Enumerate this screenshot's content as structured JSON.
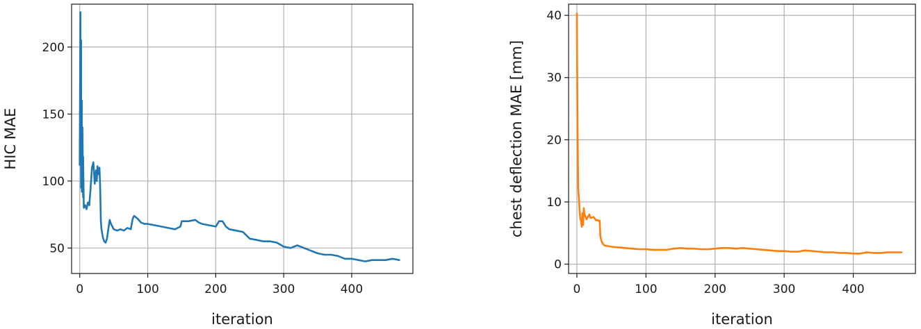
{
  "chart_data": [
    {
      "type": "line",
      "xlabel": "iteration",
      "ylabel": "HIC MAE",
      "xlim": [
        -12,
        490
      ],
      "ylim": [
        31,
        232
      ],
      "xticks": [
        0,
        100,
        200,
        300,
        400
      ],
      "yticks": [
        50,
        100,
        150,
        200
      ],
      "grid": true,
      "color": "#1f77b4",
      "series": [
        {
          "x": [
            0,
            1,
            1,
            2,
            2,
            3,
            3,
            4,
            5,
            5,
            6,
            8,
            10,
            12,
            14,
            16,
            18,
            20,
            22,
            24,
            25,
            26,
            28,
            29,
            30,
            31,
            32,
            34,
            36,
            38,
            40,
            42,
            44,
            46,
            48,
            50,
            55,
            60,
            65,
            70,
            75,
            78,
            80,
            85,
            90,
            95,
            100,
            110,
            120,
            130,
            140,
            148,
            150,
            160,
            170,
            175,
            180,
            190,
            200,
            205,
            210,
            215,
            220,
            230,
            240,
            250,
            260,
            270,
            280,
            290,
            300,
            310,
            320,
            330,
            340,
            350,
            360,
            370,
            380,
            390,
            400,
            410,
            420,
            430,
            440,
            450,
            460,
            470
          ],
          "y": [
            112,
            226,
            120,
            205,
            95,
            160,
            92,
            140,
            88,
            118,
            80,
            82,
            79,
            84,
            82,
            95,
            110,
            114,
            98,
            108,
            100,
            111,
            105,
            110,
            95,
            70,
            64,
            58,
            55,
            54,
            57,
            64,
            71,
            68,
            66,
            64,
            63,
            64,
            63,
            65,
            64,
            72,
            74,
            72,
            69,
            68,
            68,
            67,
            66,
            65,
            64,
            66,
            70,
            70,
            71,
            69,
            68,
            67,
            66,
            70,
            70,
            66,
            64,
            63,
            62,
            57,
            56,
            55,
            55,
            54,
            51,
            50,
            52,
            50,
            48,
            46,
            45,
            45,
            44,
            42,
            42,
            41,
            40,
            41,
            41,
            41,
            42,
            41
          ]
        }
      ]
    },
    {
      "type": "line",
      "xlabel": "iteration",
      "ylabel": "chest deflection MAE [mm]",
      "xlim": [
        -12,
        490
      ],
      "ylim": [
        -1.5,
        41.8
      ],
      "xticks": [
        0,
        100,
        200,
        300,
        400
      ],
      "yticks": [
        0,
        10,
        20,
        30,
        40
      ],
      "grid": true,
      "color": "#ff7f0e",
      "series": [
        {
          "x": [
            0,
            1,
            2,
            3,
            4,
            5,
            6,
            7,
            8,
            9,
            10,
            11,
            12,
            13,
            14,
            16,
            18,
            20,
            22,
            24,
            26,
            28,
            30,
            32,
            33,
            34,
            35,
            36,
            38,
            40,
            45,
            50,
            60,
            70,
            80,
            90,
            100,
            110,
            120,
            130,
            140,
            150,
            160,
            170,
            180,
            190,
            200,
            210,
            220,
            230,
            240,
            250,
            260,
            270,
            280,
            290,
            300,
            310,
            320,
            330,
            340,
            350,
            360,
            370,
            380,
            390,
            400,
            410,
            420,
            430,
            440,
            450,
            460,
            470
          ],
          "y": [
            40.3,
            22.0,
            12.0,
            10.5,
            8.5,
            7.2,
            7.0,
            6.0,
            8.2,
            6.3,
            9.0,
            8.0,
            7.8,
            7.5,
            7.2,
            7.6,
            8.0,
            7.4,
            7.5,
            7.6,
            7.3,
            7.0,
            7.1,
            6.9,
            7.0,
            4.5,
            4.0,
            3.6,
            3.2,
            3.0,
            2.9,
            2.8,
            2.7,
            2.6,
            2.5,
            2.4,
            2.4,
            2.3,
            2.3,
            2.3,
            2.5,
            2.6,
            2.5,
            2.5,
            2.4,
            2.4,
            2.5,
            2.6,
            2.6,
            2.5,
            2.6,
            2.5,
            2.4,
            2.3,
            2.2,
            2.1,
            2.1,
            2.0,
            2.0,
            2.2,
            2.1,
            2.0,
            1.9,
            1.9,
            1.8,
            1.8,
            1.7,
            1.7,
            1.9,
            1.8,
            1.8,
            1.9,
            1.9,
            1.9
          ]
        }
      ]
    }
  ]
}
